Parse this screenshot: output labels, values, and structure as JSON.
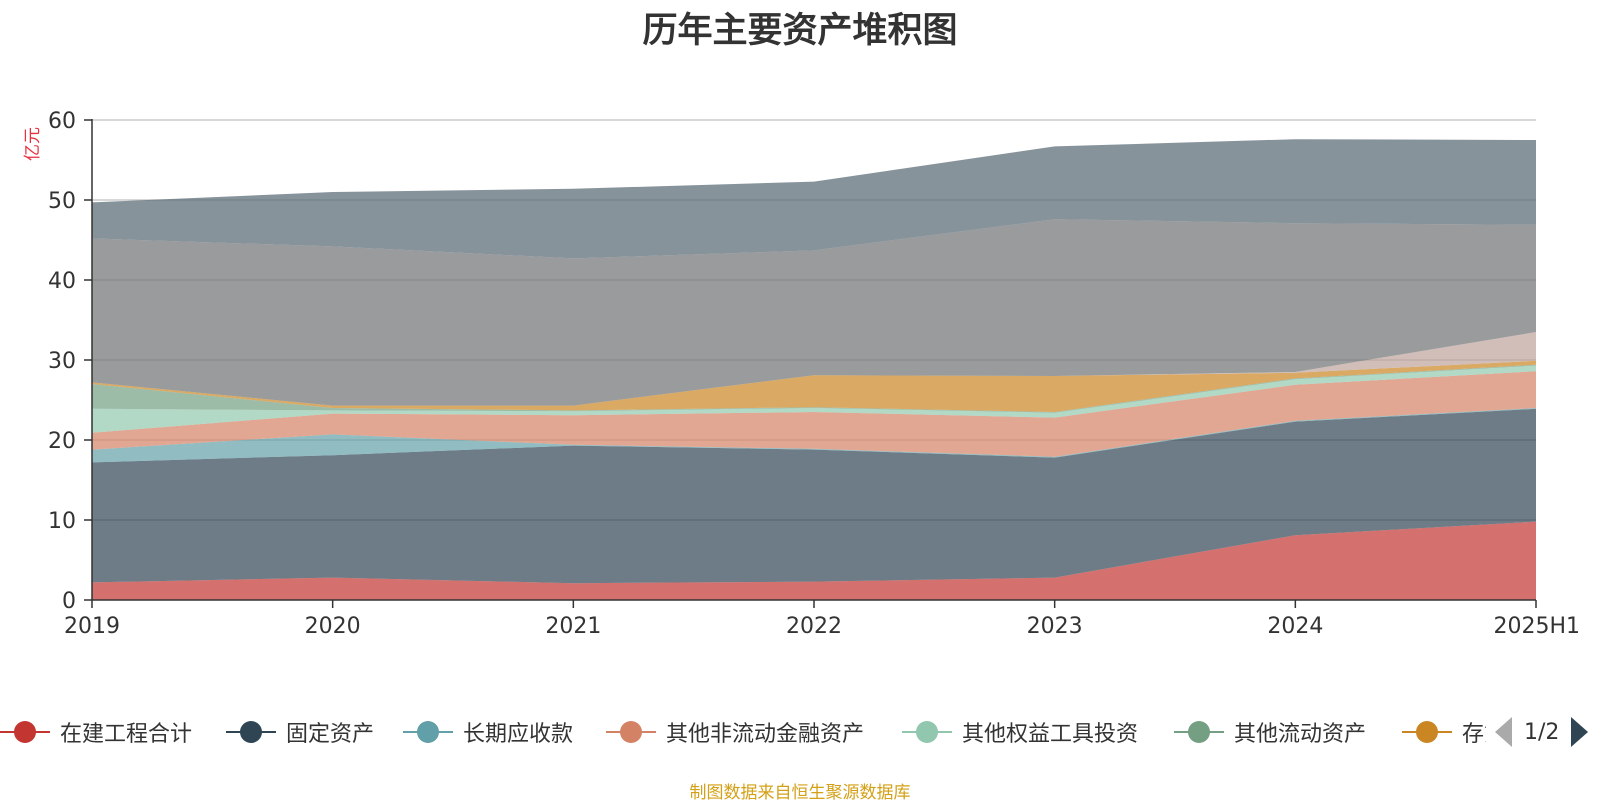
{
  "title": "历年主要资产堆积图",
  "footer": "制图数据来自恒生聚源数据库",
  "legend_page": "1/2",
  "chart_data": {
    "type": "area",
    "stacked": true,
    "title": "历年主要资产堆积图",
    "ylabel": "亿元",
    "ylim": [
      0,
      60
    ],
    "yticks": [
      0,
      10,
      20,
      30,
      40,
      50,
      60
    ],
    "categories": [
      "2019",
      "2020",
      "2021",
      "2022",
      "2023",
      "2024",
      "2025H1"
    ],
    "grid": true,
    "legend_position": "bottom",
    "series": [
      {
        "name": "在建工程合计",
        "color": "#c23531",
        "values": [
          2.2,
          2.8,
          2.1,
          2.3,
          2.8,
          8.1,
          9.8
        ]
      },
      {
        "name": "固定资产",
        "color": "#2f4554",
        "values": [
          15.0,
          15.3,
          17.2,
          16.5,
          15.0,
          14.2,
          14.1
        ]
      },
      {
        "name": "长期应收款",
        "color": "#61a0a8",
        "values": [
          1.6,
          2.6,
          0.1,
          0.1,
          0.1,
          0.1,
          0.1
        ]
      },
      {
        "name": "其他非流动金融资产",
        "color": "#d48265",
        "values": [
          2.1,
          2.6,
          3.7,
          4.6,
          4.9,
          4.5,
          4.6
        ]
      },
      {
        "name": "其他权益工具投资",
        "color": "#91c7ae",
        "values": [
          3.0,
          0.4,
          0.5,
          0.5,
          0.6,
          0.7,
          0.7
        ]
      },
      {
        "name": "其他流动资产",
        "color": "#749f83",
        "values": [
          3.1,
          0.3,
          0.1,
          0.1,
          0.1,
          0.1,
          0.1
        ]
      },
      {
        "name": "存货",
        "color": "#ca8622",
        "values": [
          0.2,
          0.3,
          0.6,
          4.0,
          4.5,
          0.7,
          0.5
        ]
      },
      {
        "name": "",
        "color": "#bda29a",
        "values": [
          0.0,
          0.0,
          0.0,
          0.0,
          0.0,
          0.1,
          3.6
        ]
      },
      {
        "name": "",
        "color": "#6e7074",
        "values": [
          18.0,
          19.9,
          18.4,
          15.6,
          19.6,
          18.6,
          13.4
        ]
      },
      {
        "name": "",
        "color": "#546570",
        "values": [
          4.5,
          6.8,
          8.7,
          8.6,
          9.1,
          10.5,
          10.6
        ]
      }
    ]
  }
}
